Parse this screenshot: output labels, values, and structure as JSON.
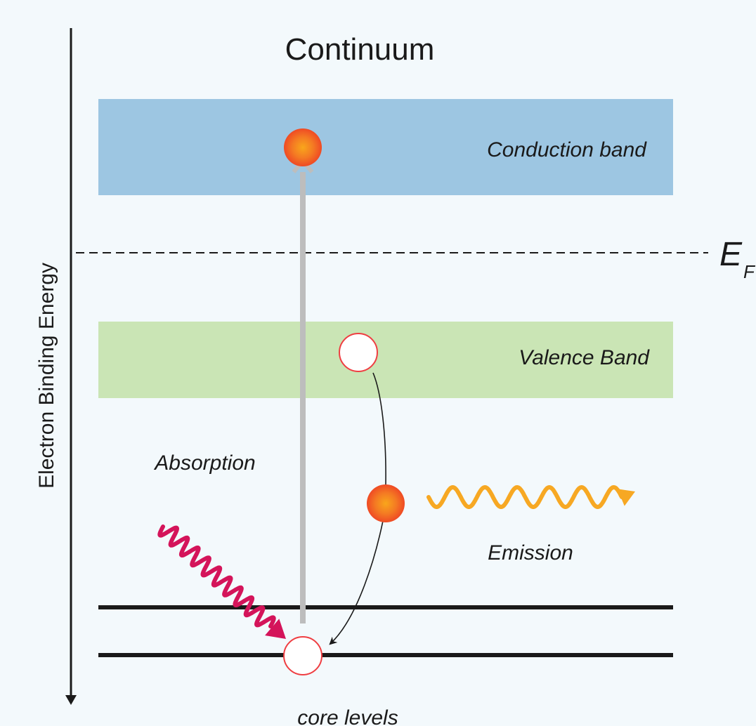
{
  "diagram": {
    "title": "Continuum",
    "axis_label": "Electron Binding Energy",
    "bands": {
      "conduction": "Conduction band",
      "valence": "Valence Band"
    },
    "fermi": {
      "symbol": "E",
      "subscript": "F"
    },
    "processes": {
      "absorption": "Absorption",
      "emission": "Emission"
    },
    "core_levels": "core levels",
    "colors": {
      "background": "#f3f9fc",
      "conduction_band": "#9dc6e2",
      "valence_band": "#cae5b5",
      "absorbed_photon": "#d4145a",
      "emitted_photon": "#f7a823",
      "transition_arrow": "#bdbdbd",
      "electron": "#f05a28",
      "hole_outline": "#ef3e42"
    }
  }
}
